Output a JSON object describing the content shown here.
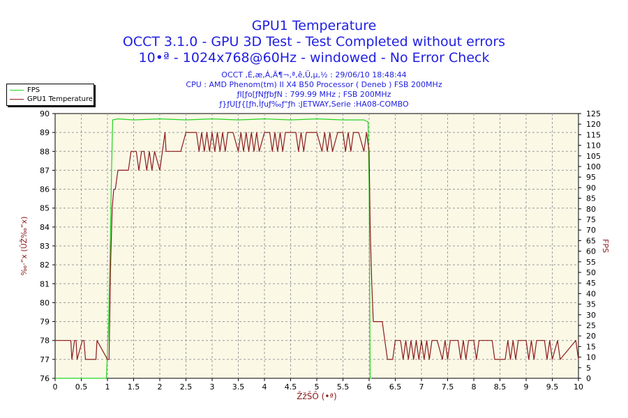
{
  "title_lines": [
    "GPU1 Temperature",
    "OCCT 3.1.0 - GPU 3D Test - Test Completed without errors",
    "10•ª - 1024x768@60Hz - windowed - No Error Check"
  ],
  "info_lines": [
    "OCCT ,É,æ,Á,Ä¶¬,ª,ê,Ü,µ,½ : 29/06/10 18:48:44",
    "CPU : AMD Phenom(tm) II X4 B50 Processor ( Deneb ) FSB 200MHz",
    "ƒI[ƒo[ƒNƒƒbƒN : 799.99 MHz ; FSB 200MHz",
    "ƒ}ƒU[ƒ{[ƒh,Ìƒuƒ‰ƒ\"ƒh :JETWAY,Serie :HA08-COMBO"
  ],
  "colors": {
    "background": "#ffffff",
    "plot_background": "#fbf8e6",
    "grid": "#9a9a9a",
    "title": "#1f1fe0",
    "axis_label": "#8b1a1a",
    "fps": "#22d422",
    "temperature": "#8b1a1a"
  },
  "chart_data": {
    "type": "line",
    "xlabel": "ŽžŠÔ (•ª)",
    "ylabel_left": "‰·“x (ÛŽ‰“x)",
    "ylabel_right": "FPS",
    "xlim": [
      0,
      10
    ],
    "ylim_left": [
      76,
      90
    ],
    "ylim_right": [
      0,
      125
    ],
    "x_ticks": [
      0,
      0.5,
      1,
      1.5,
      2,
      2.5,
      3,
      3.5,
      4,
      4.5,
      5,
      5.5,
      6,
      6.5,
      7,
      7.5,
      8,
      8.5,
      9,
      9.5,
      10
    ],
    "x_tick_labels": [
      "0",
      "0.5",
      "1",
      "1.5",
      "2",
      "2.5",
      "3",
      "3.5",
      "4",
      "4.5",
      "5",
      "5.5",
      "6",
      "6.5",
      "7",
      "7.5",
      "8",
      "8.5",
      "9",
      "9.5",
      "10"
    ],
    "y_left_ticks": [
      76,
      77,
      78,
      79,
      80,
      81,
      82,
      83,
      84,
      85,
      86,
      87,
      88,
      89,
      90
    ],
    "y_right_ticks": [
      0,
      5,
      10,
      15,
      20,
      25,
      30,
      35,
      40,
      45,
      50,
      55,
      60,
      65,
      70,
      75,
      80,
      85,
      90,
      95,
      100,
      105,
      110,
      115,
      120,
      125
    ],
    "grid": true,
    "legend_position": "top-left, outside plot",
    "series": [
      {
        "name": "FPS",
        "axis": "right",
        "color": "#22d422",
        "x": [
          0,
          0.98,
          1.02,
          1.05,
          1.08,
          1.1,
          1.2,
          1.5,
          2,
          2.5,
          3,
          3.5,
          4,
          4.5,
          5,
          5.5,
          5.9,
          5.98,
          6.0,
          6.02,
          6.05
        ],
        "y": [
          0,
          0,
          25,
          60,
          100,
          122,
          122.5,
          122,
          122.5,
          122,
          122.5,
          122,
          122.5,
          122,
          122.5,
          122,
          122,
          121,
          90,
          0,
          0
        ]
      },
      {
        "name": "GPU1 Temperature",
        "axis": "left",
        "color": "#8b1a1a",
        "x": [
          0,
          0.3,
          0.32,
          0.37,
          0.4,
          0.42,
          0.52,
          0.55,
          0.58,
          0.78,
          0.8,
          1.0,
          1.03,
          1.06,
          1.09,
          1.12,
          1.15,
          1.2,
          1.4,
          1.45,
          1.55,
          1.6,
          1.65,
          1.7,
          1.75,
          1.8,
          1.85,
          1.9,
          2.0,
          2.1,
          2.12,
          2.2,
          2.4,
          2.5,
          2.7,
          2.75,
          2.8,
          2.85,
          2.9,
          2.95,
          3.0,
          3.05,
          3.1,
          3.15,
          3.2,
          3.25,
          3.3,
          3.4,
          3.5,
          3.55,
          3.6,
          3.65,
          3.7,
          3.75,
          3.8,
          3.85,
          3.9,
          4.0,
          4.1,
          4.15,
          4.2,
          4.25,
          4.3,
          4.35,
          4.4,
          4.6,
          4.65,
          4.7,
          4.75,
          4.8,
          5.0,
          5.1,
          5.15,
          5.2,
          5.25,
          5.3,
          5.4,
          5.5,
          5.55,
          5.6,
          5.65,
          5.7,
          5.8,
          5.9,
          5.95,
          6.0,
          6.02,
          6.05,
          6.08,
          6.1,
          6.25,
          6.3,
          6.35,
          6.45,
          6.5,
          6.6,
          6.65,
          6.7,
          6.75,
          6.8,
          6.85,
          6.9,
          6.95,
          7.0,
          7.05,
          7.1,
          7.15,
          7.2,
          7.3,
          7.4,
          7.45,
          7.5,
          7.55,
          7.7,
          7.75,
          7.8,
          7.85,
          7.9,
          8.0,
          8.05,
          8.1,
          8.2,
          8.35,
          8.4,
          8.6,
          8.65,
          8.7,
          8.75,
          8.8,
          8.85,
          9.0,
          9.05,
          9.1,
          9.15,
          9.2,
          9.35,
          9.4,
          9.45,
          9.5,
          9.6,
          9.65,
          9.95,
          10.0
        ],
        "y": [
          78,
          78,
          77,
          78,
          78,
          77,
          78,
          78,
          77,
          77,
          78,
          77,
          77,
          82,
          85,
          86,
          86,
          87,
          87,
          88,
          88,
          87,
          88,
          88,
          87,
          88,
          87,
          88,
          87,
          89,
          88,
          88,
          88,
          89,
          89,
          88,
          89,
          88,
          89,
          88,
          89,
          88,
          89,
          88,
          89,
          88,
          89,
          89,
          88,
          89,
          88,
          89,
          88,
          89,
          88,
          89,
          88,
          89,
          89,
          88,
          89,
          88,
          89,
          88,
          89,
          89,
          88,
          89,
          88,
          89,
          89,
          88,
          89,
          88,
          89,
          88,
          89,
          89,
          88,
          89,
          88,
          89,
          89,
          88,
          89,
          88,
          84,
          81,
          79,
          79,
          79,
          78,
          77,
          77,
          78,
          78,
          77,
          78,
          77,
          78,
          77,
          78,
          77,
          78,
          77,
          78,
          77,
          78,
          78,
          77,
          78,
          77,
          78,
          78,
          77,
          78,
          77,
          78,
          78,
          77,
          78,
          78,
          78,
          77,
          77,
          78,
          77,
          78,
          77,
          78,
          78,
          77,
          78,
          77,
          78,
          78,
          77,
          78,
          77,
          78,
          77,
          78,
          77
        ]
      }
    ]
  }
}
